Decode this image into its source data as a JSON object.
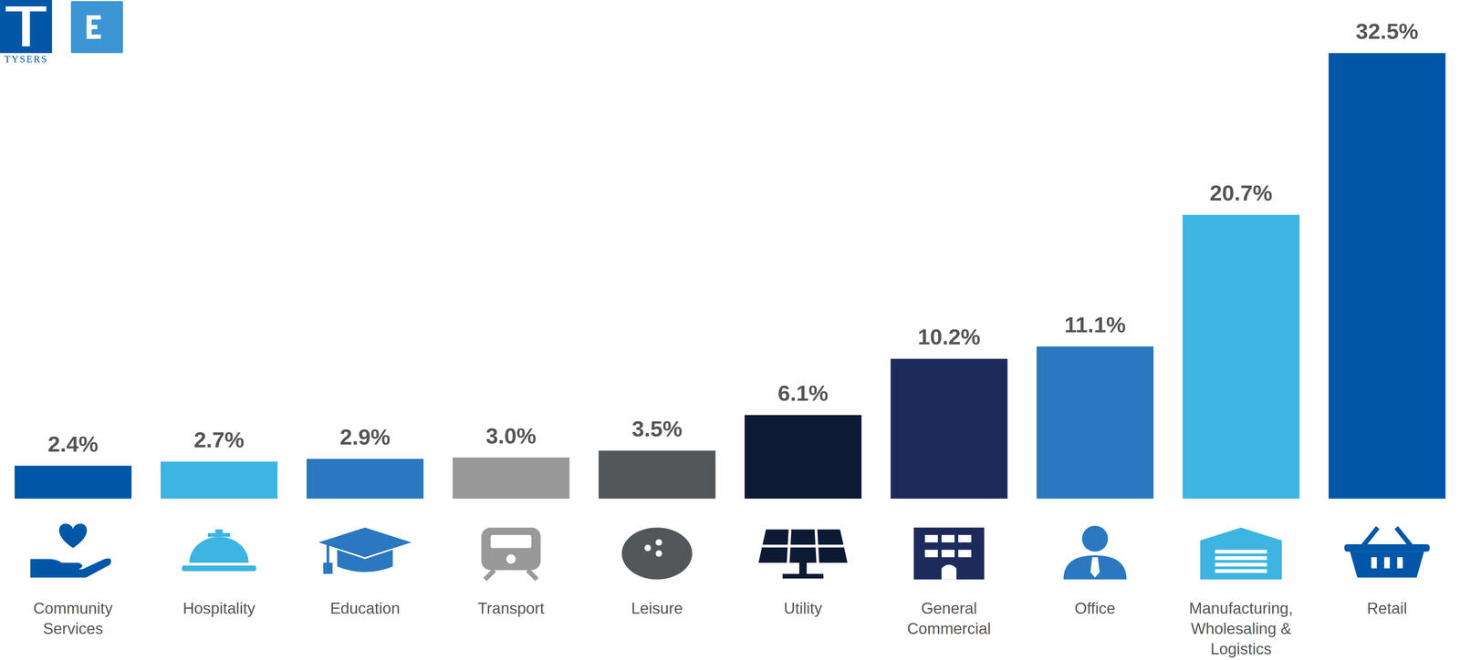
{
  "chart_data": {
    "type": "bar",
    "annotations": [
      "TYSERS"
    ],
    "categories": [
      "Community Services",
      "Hospitality",
      "Education",
      "Transport",
      "Leisure",
      "Utility",
      "General Commercial",
      "Office",
      "Manufacturing, Wholesaling & Logistics",
      "Retail"
    ],
    "values": [
      2.4,
      2.7,
      2.9,
      3.0,
      3.5,
      6.1,
      10.2,
      11.1,
      20.7,
      32.5
    ],
    "value_labels": [
      "2.4%",
      "2.7%",
      "2.9%",
      "3.0%",
      "3.5%",
      "6.1%",
      "10.2%",
      "11.1%",
      "20.7%",
      "32.5%"
    ],
    "colors": [
      "#0057a8",
      "#3db4e2",
      "#2b78c0",
      "#999999",
      "#54575a",
      "#0d1a33",
      "#1c2b5c",
      "#2b78c0",
      "#3db4e2",
      "#0057a8"
    ],
    "ylim": [
      0,
      32.5
    ],
    "yticks": [
      0,
      32.5
    ],
    "grid": false,
    "data_labels": true,
    "tick_labels": "x"
  }
}
